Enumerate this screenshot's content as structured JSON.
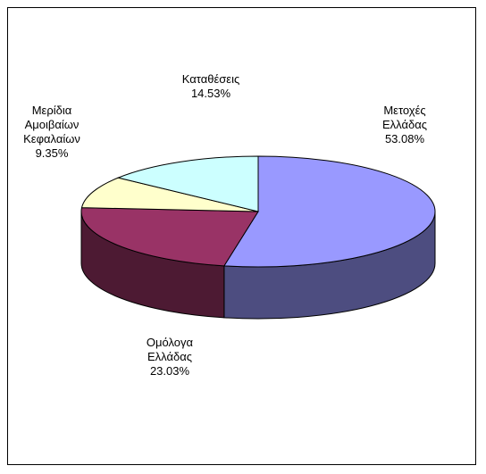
{
  "chart_data": {
    "type": "pie",
    "style": "3d",
    "title": "",
    "legend": "none",
    "slices": [
      {
        "label_lines": [
          "Μετοχές",
          "Ελλάδας"
        ],
        "value_label": "53.08%",
        "value": 53.08,
        "color": "#9999ff",
        "side_color": "#4d4d80"
      },
      {
        "label_lines": [
          "Ομόλογα",
          "Ελλάδας"
        ],
        "value_label": "23.03%",
        "value": 23.03,
        "color": "#993366",
        "side_color": "#4d1a33"
      },
      {
        "label_lines": [
          "Μερίδια",
          "Αμοιβαίων",
          "Κεφαλαίων"
        ],
        "value_label": "9.35%",
        "value": 9.35,
        "color": "#ffffcc",
        "side_color": "#808066"
      },
      {
        "label_lines": [
          "Καταθέσεις"
        ],
        "value_label": "14.53%",
        "value": 14.53,
        "color": "#ccffff",
        "side_color": "#668080"
      }
    ]
  }
}
